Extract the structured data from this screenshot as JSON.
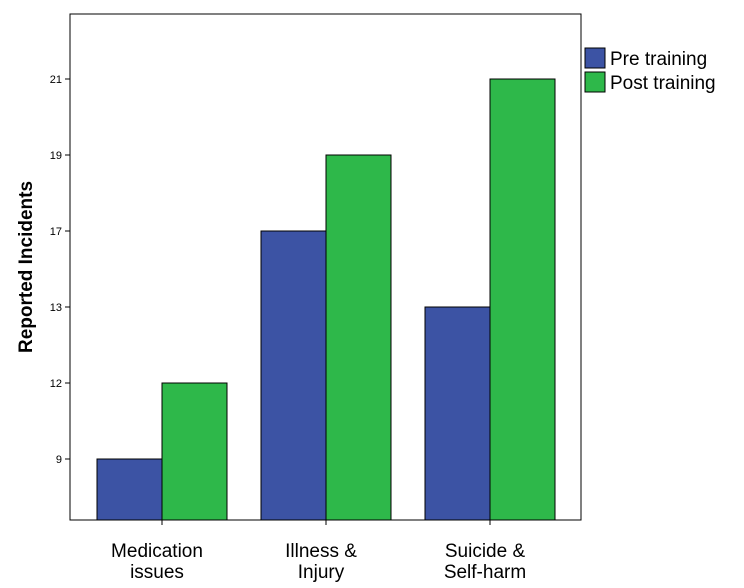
{
  "chart_data": {
    "type": "bar",
    "title": "",
    "xlabel": "",
    "ylabel": "Reported Incidents",
    "categories": [
      [
        "Medication",
        "issues"
      ],
      [
        "Illness &",
        "Injury"
      ],
      [
        "Suicide &",
        "Self-harm"
      ]
    ],
    "y_tick_labels": [
      "9",
      "12",
      "13",
      "17",
      "19",
      "21"
    ],
    "series": [
      {
        "name": "Pre training",
        "color": "#3c53a4",
        "values": [
          9,
          17,
          13
        ]
      },
      {
        "name": "Post training",
        "color": "#2eb84a",
        "values": [
          12,
          19,
          21
        ]
      }
    ],
    "y_axis_note": "tick labels are evenly spaced, not linear",
    "grid": false,
    "legend": "top-right"
  }
}
